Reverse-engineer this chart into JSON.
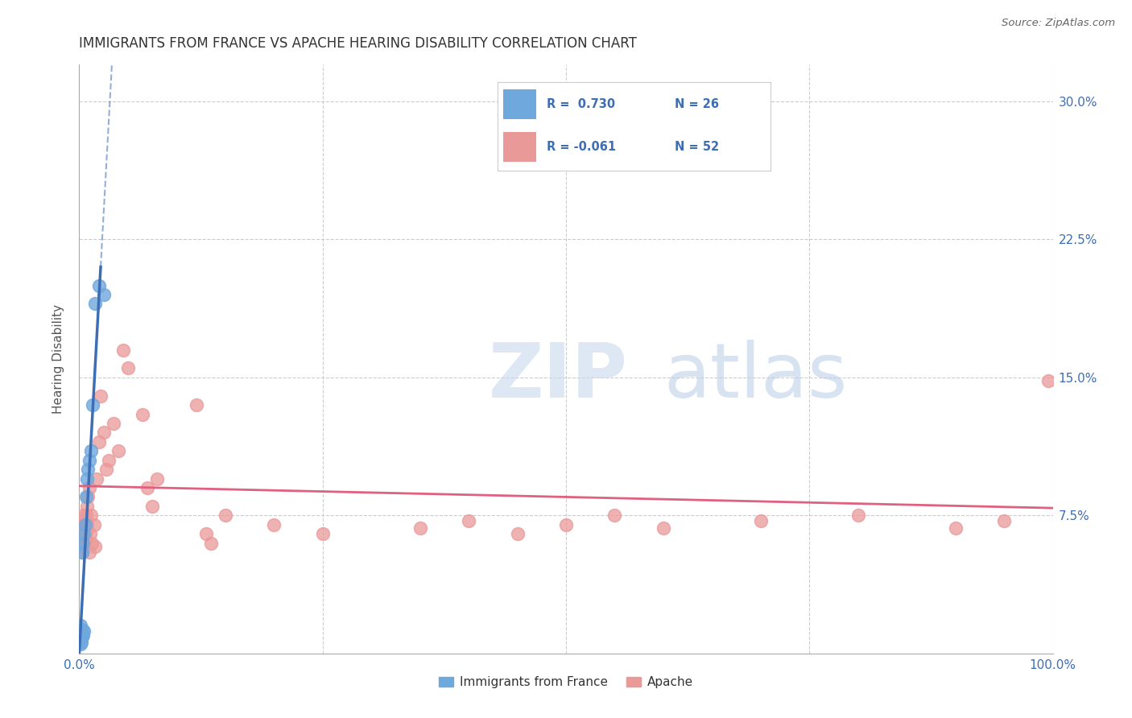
{
  "title": "IMMIGRANTS FROM FRANCE VS APACHE HEARING DISABILITY CORRELATION CHART",
  "source": "Source: ZipAtlas.com",
  "ylabel": "Hearing Disability",
  "xlim": [
    0.0,
    1.0
  ],
  "ylim": [
    0.0,
    0.32
  ],
  "xticks": [
    0.0,
    0.25,
    0.5,
    0.75,
    1.0
  ],
  "xticklabels": [
    "0.0%",
    "",
    "",
    "",
    "100.0%"
  ],
  "yticks": [
    0.0,
    0.075,
    0.15,
    0.225,
    0.3
  ],
  "yticklabels": [
    "",
    "7.5%",
    "15.0%",
    "22.5%",
    "30.0%"
  ],
  "blue_color": "#6fa8dc",
  "pink_color": "#ea9999",
  "blue_line_color": "#3d6eb5",
  "pink_line_color": "#e06080",
  "grid_color": "#cccccc",
  "france_x": [
    0.001,
    0.001,
    0.001,
    0.001,
    0.001,
    0.002,
    0.002,
    0.002,
    0.002,
    0.003,
    0.003,
    0.003,
    0.004,
    0.004,
    0.005,
    0.005,
    0.006,
    0.007,
    0.008,
    0.009,
    0.01,
    0.012,
    0.014,
    0.016,
    0.02,
    0.025
  ],
  "france_y": [
    0.005,
    0.007,
    0.01,
    0.012,
    0.015,
    0.006,
    0.008,
    0.01,
    0.013,
    0.009,
    0.012,
    0.055,
    0.06,
    0.01,
    0.065,
    0.012,
    0.07,
    0.085,
    0.095,
    0.1,
    0.105,
    0.11,
    0.135,
    0.19,
    0.2,
    0.195
  ],
  "apache_x": [
    0.002,
    0.003,
    0.003,
    0.004,
    0.004,
    0.005,
    0.005,
    0.006,
    0.006,
    0.007,
    0.007,
    0.008,
    0.008,
    0.009,
    0.01,
    0.01,
    0.011,
    0.012,
    0.013,
    0.015,
    0.016,
    0.018,
    0.02,
    0.022,
    0.025,
    0.028,
    0.03,
    0.035,
    0.04,
    0.045,
    0.05,
    0.065,
    0.07,
    0.075,
    0.08,
    0.12,
    0.13,
    0.135,
    0.15,
    0.2,
    0.25,
    0.35,
    0.4,
    0.45,
    0.5,
    0.55,
    0.6,
    0.7,
    0.8,
    0.9,
    0.95,
    0.995
  ],
  "apache_y": [
    0.06,
    0.055,
    0.07,
    0.065,
    0.075,
    0.058,
    0.068,
    0.062,
    0.072,
    0.066,
    0.075,
    0.07,
    0.08,
    0.085,
    0.055,
    0.09,
    0.065,
    0.075,
    0.06,
    0.07,
    0.058,
    0.095,
    0.115,
    0.14,
    0.12,
    0.1,
    0.105,
    0.125,
    0.11,
    0.165,
    0.155,
    0.13,
    0.09,
    0.08,
    0.095,
    0.135,
    0.065,
    0.06,
    0.075,
    0.07,
    0.065,
    0.068,
    0.072,
    0.065,
    0.07,
    0.075,
    0.068,
    0.072,
    0.075,
    0.068,
    0.072,
    0.148
  ]
}
